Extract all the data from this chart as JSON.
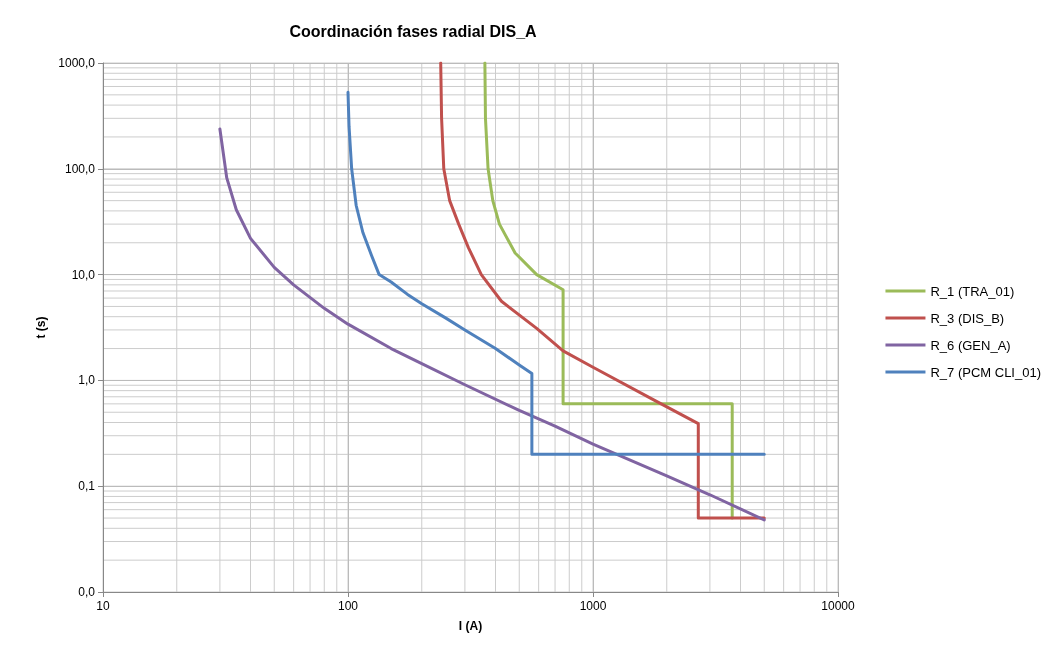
{
  "chart_data": {
    "type": "line",
    "title": "Coordinación fases radial DIS_A",
    "xlabel": "I (A)",
    "ylabel": "t (s)",
    "log": "xy",
    "grid": true,
    "legend": "right",
    "xlim": [
      10,
      10000
    ],
    "xticks": [
      10,
      100,
      1000,
      10000
    ],
    "ylim": [
      0.01,
      1000
    ],
    "yticks": [
      {
        "value": 0.01,
        "label": "0,0"
      },
      {
        "value": 0.1,
        "label": "0,1"
      },
      {
        "value": 1,
        "label": "1,0"
      },
      {
        "value": 10,
        "label": "10,0"
      },
      {
        "value": 100,
        "label": "100,0"
      },
      {
        "value": 1000,
        "label": "1000,0"
      }
    ],
    "series": [
      {
        "name": "R_1 (TRA_01)",
        "color": "#9bbb59",
        "x": [
          362,
          364,
          373,
          390,
          415,
          481,
          589,
          755,
          755,
          3700,
          3700
        ],
        "values": [
          1000,
          300,
          100,
          50,
          30,
          16,
          10,
          7.2,
          0.6,
          0.6,
          0.05
        ]
      },
      {
        "name": "R_3 (DIS_B)",
        "color": "#c0504d",
        "x": [
          239,
          241,
          246,
          260,
          283,
          310,
          350,
          423,
          589,
          755,
          1000,
          1800,
          2690,
          2690,
          5000
        ],
        "values": [
          1000,
          300,
          100,
          50,
          30,
          18,
          10,
          5.6,
          3.1,
          1.9,
          1.33,
          0.64,
          0.39,
          0.05,
          0.05
        ]
      },
      {
        "name": "R_6 (GEN_A)",
        "color": "#8064a2",
        "x": [
          30,
          32,
          35,
          40,
          50,
          60,
          80,
          100,
          150,
          200,
          300,
          500,
          700,
          1000,
          2000,
          3000,
          5000
        ],
        "values": [
          238,
          82,
          41,
          22,
          11.7,
          8,
          4.8,
          3.4,
          2.0,
          1.44,
          0.91,
          0.52,
          0.37,
          0.25,
          0.125,
          0.083,
          0.048
        ]
      },
      {
        "name": "R_7 (PCM CLI_01)",
        "color": "#4f81bd",
        "x": [
          100,
          101,
          103.5,
          108,
          115,
          125,
          134,
          150,
          175,
          200,
          250,
          300,
          400,
          500,
          563,
          563,
          5000
        ],
        "values": [
          530,
          250,
          100,
          45,
          25,
          15,
          10,
          8.5,
          6.5,
          5.3,
          3.9,
          3.0,
          2.0,
          1.4,
          1.16,
          0.2,
          0.2
        ]
      }
    ]
  }
}
